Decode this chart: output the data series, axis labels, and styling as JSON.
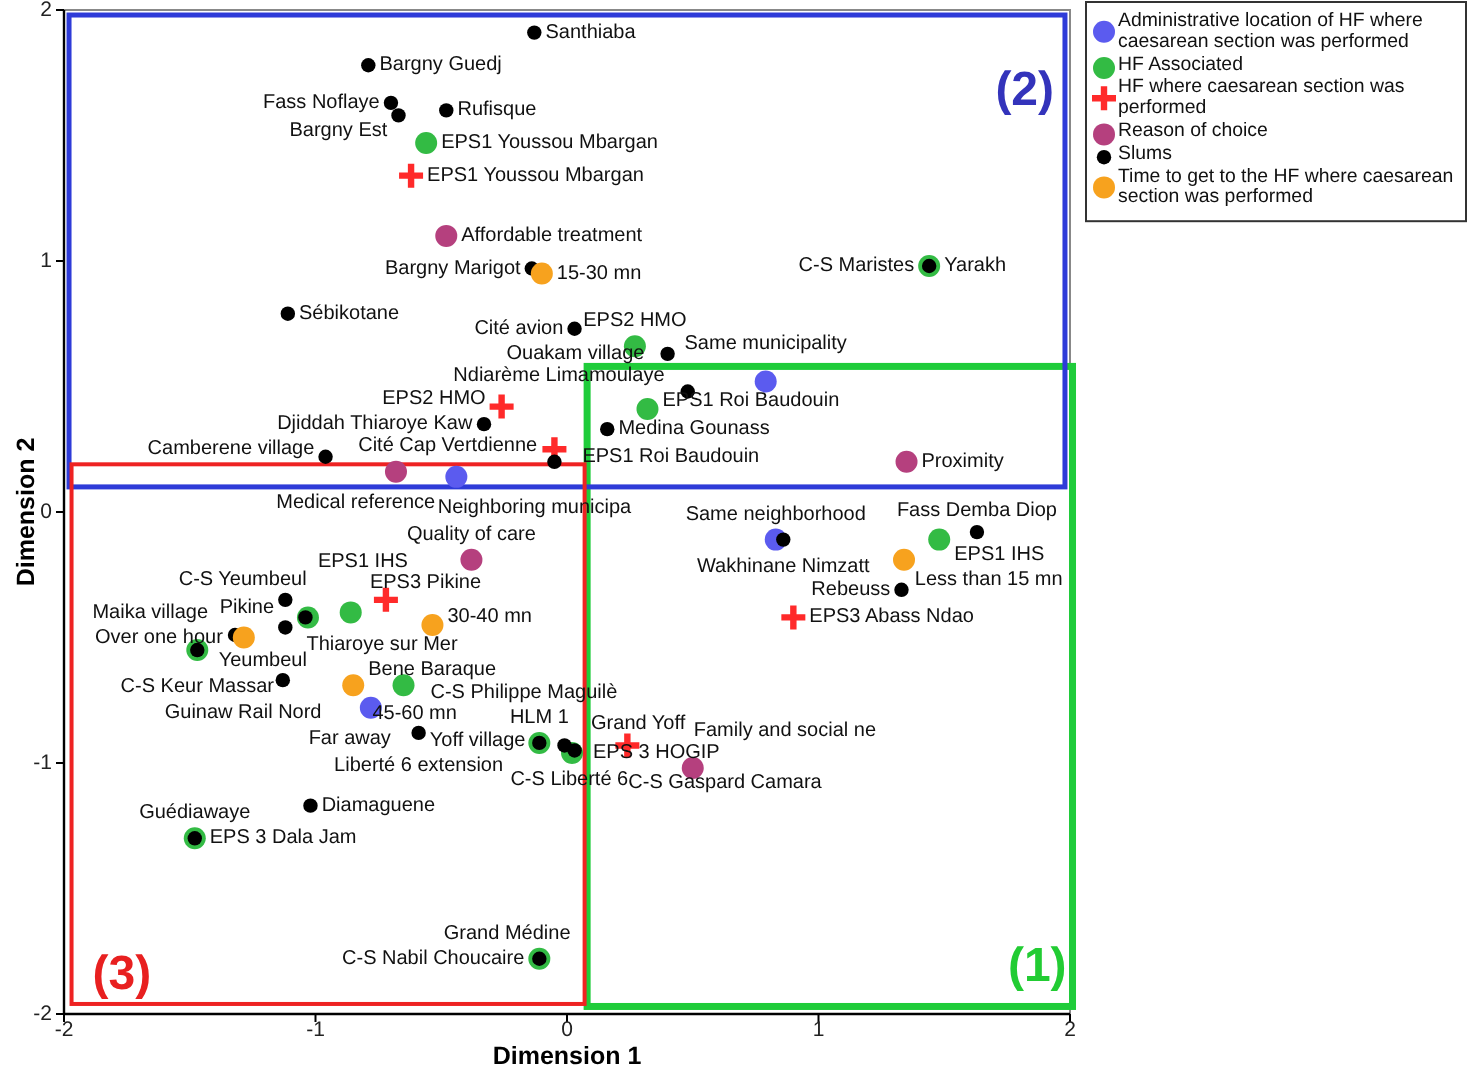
{
  "chart_data": {
    "type": "scatter",
    "xlabel": "Dimension 1",
    "ylabel": "Dimension 2",
    "xlim": [
      -2,
      2
    ],
    "ylim": [
      -2,
      2
    ],
    "xticks": [
      -2,
      -1,
      0,
      1,
      2
    ],
    "yticks": [
      -2,
      -1,
      0,
      1,
      2
    ],
    "legend": "top right",
    "series": [
      {
        "name": "Administrative location of HF where caesarean section was performed",
        "color": "#5b5bef",
        "marker": "circle",
        "x": [
          -0.44,
          0.79,
          0.83,
          -0.78
        ],
        "values": [
          0.14,
          0.52,
          -0.11,
          -0.78
        ]
      },
      {
        "name": "HF Associated",
        "color": "#33bb44",
        "marker": "circle",
        "x": [
          -0.56,
          0.27,
          1.44,
          0.32,
          1.48,
          -0.86,
          -1.03,
          -1.47,
          -0.65,
          -0.11,
          0.02,
          -1.48,
          -0.11
        ],
        "values": [
          1.47,
          0.66,
          0.98,
          0.41,
          -0.11,
          -0.4,
          -0.42,
          -0.55,
          -0.69,
          -0.92,
          -0.96,
          -1.3,
          -1.78
        ]
      },
      {
        "name": "HF where caesarean section was performed",
        "color": "#ff2a2a",
        "marker": "cross",
        "x": [
          -0.62,
          -0.26,
          -0.05,
          -0.72,
          0.9,
          0.24
        ],
        "values": [
          1.34,
          0.42,
          0.25,
          -0.35,
          -0.42,
          -0.93
        ]
      },
      {
        "name": "Reason of choice",
        "color": "#b5407e",
        "marker": "circle",
        "x": [
          -0.48,
          -0.68,
          1.35,
          -0.38,
          0.5
        ],
        "values": [
          1.1,
          0.16,
          0.2,
          -0.19,
          -1.02
        ]
      },
      {
        "name": "Slums",
        "color": "#000000",
        "marker": "circle",
        "x": [
          -0.79,
          -0.13,
          -0.7,
          -0.67,
          -0.48,
          -0.14,
          -1.11,
          0.03,
          0.4,
          1.44,
          0.48,
          0.16,
          -0.33,
          -0.05,
          -0.96,
          0.86,
          1.63,
          1.33,
          -1.12,
          -1.04,
          -1.12,
          -1.32,
          -1.47,
          -1.13,
          -0.59,
          -0.11,
          -0.01,
          0.03,
          -1.02,
          -1.48,
          -0.11
        ],
        "values": [
          1.78,
          1.91,
          1.63,
          1.58,
          1.6,
          0.97,
          0.79,
          0.73,
          0.63,
          0.98,
          0.48,
          0.33,
          0.35,
          0.2,
          0.22,
          -0.11,
          -0.08,
          -0.31,
          -0.35,
          -0.42,
          -0.46,
          -0.49,
          -0.55,
          -0.67,
          -0.88,
          -0.92,
          -0.93,
          -0.95,
          -1.17,
          -1.3,
          -1.78
        ]
      },
      {
        "name": "Time to get to the HF where caesarean section was performed",
        "color": "#f7a21e",
        "marker": "circle",
        "x": [
          -0.1,
          1.34,
          -0.535,
          -1.285,
          -0.85
        ],
        "values": [
          0.95,
          -0.19,
          -0.45,
          -0.5,
          -0.69
        ]
      }
    ],
    "annotations": [
      "(1)",
      "(2)",
      "(3)",
      {
        "text": "Pikine",
        "x": -1.12,
        "y": -0.35
      },
      {
        "text": "Thiaroye sur Mer",
        "x": -1.04,
        "y": -0.42
      },
      {
        "text": "C-S Yeumbeul",
        "x": -1.03,
        "y": -0.42
      },
      {
        "text": "Yeumbeul",
        "x": -1.12,
        "y": -0.46
      },
      {
        "text": "EPS3 Pikine",
        "x": -0.86,
        "y": -0.4
      },
      {
        "text": "EPS1 IHS",
        "x": -0.72,
        "y": -0.35
      },
      {
        "text": "30-40 mn",
        "x": -0.535,
        "y": -0.45
      },
      {
        "text": "Over one hour",
        "x": -1.285,
        "y": -0.5
      },
      {
        "text": "Maika village",
        "x": -1.47,
        "y": -0.55
      },
      {
        "text": "C-S Keur Massar",
        "x": -1.47,
        "y": -0.55
      },
      {
        "text": "Guinaw Rail Nord",
        "x": -1.13,
        "y": -0.67
      },
      {
        "text": "45-60 mn",
        "x": -0.85,
        "y": -0.69
      },
      {
        "text": "Bene Baraque",
        "x": -0.85,
        "y": -0.69
      },
      {
        "text": "C-S Philippe Maguilè",
        "x": -0.65,
        "y": -0.69
      },
      {
        "text": "Far away",
        "x": -0.78,
        "y": -0.78
      },
      {
        "text": "Yoff village",
        "x": -0.59,
        "y": -0.88
      },
      {
        "text": "Liberté 6 extension",
        "x": -0.59,
        "y": -0.88
      },
      {
        "text": "HLM 1",
        "x": -0.11,
        "y": -0.92
      },
      {
        "text": "C-S Liberté 6",
        "x": -0.11,
        "y": -0.92
      },
      {
        "text": "Grand Yoff",
        "x": 0.03,
        "y": -0.95
      },
      {
        "text": "EPS 3 HOGIP",
        "x": 0.02,
        "y": -0.96
      },
      {
        "text": "C-S Gaspard Camara",
        "x": 0.24,
        "y": -0.93
      },
      {
        "text": "Family and social ne",
        "x": 0.5,
        "y": -1.02
      },
      {
        "text": "Diamaguene",
        "x": -1.02,
        "y": -1.17
      },
      {
        "text": "EPS 3 Dala Jam",
        "x": -1.48,
        "y": -1.3
      },
      {
        "text": "Guédiawaye",
        "x": -1.48,
        "y": -1.3
      },
      {
        "text": "C-S Nabil Choucaire",
        "x": -0.11,
        "y": -1.78
      },
      {
        "text": "Grand Médine",
        "x": -0.11,
        "y": -1.78
      },
      {
        "text": "Djiddah Thiaroye Kaw",
        "x": -0.33,
        "y": 0.35
      },
      {
        "text": "EPS2 HMO",
        "x": -0.26,
        "y": 0.42
      },
      {
        "text": "Cité Cap Vertdienne",
        "x": -0.05,
        "y": 0.2
      },
      {
        "text": "EPS1 Roi Baudouin",
        "x": -0.05,
        "y": 0.25
      },
      {
        "text": "Medina Gounass",
        "x": 0.16,
        "y": 0.33
      },
      {
        "text": "Camberene village",
        "x": -0.96,
        "y": 0.22
      },
      {
        "text": "Medical reference",
        "x": -0.68,
        "y": 0.16
      },
      {
        "text": "Neighboring municipa",
        "x": -0.44,
        "y": 0.14
      },
      {
        "text": "Quality of care",
        "x": -0.38,
        "y": -0.19
      },
      {
        "text": "Ndiarème Limamoulaye",
        "x": 0.48,
        "y": 0.48
      },
      {
        "text": "EPS1 Roi Baudouin",
        "x": 0.32,
        "y": 0.41
      },
      {
        "text": "Same municipality",
        "x": 0.79,
        "y": 0.52
      },
      {
        "text": "Proximity",
        "x": 1.35,
        "y": 0.2
      },
      {
        "text": "Same neighborhood",
        "x": 0.83,
        "y": -0.11
      },
      {
        "text": "Wakhinane Nimzatt",
        "x": 0.86,
        "y": -0.11
      },
      {
        "text": "EPS1 IHS",
        "x": 1.48,
        "y": -0.11
      },
      {
        "text": "Fass Demba Diop",
        "x": 1.63,
        "y": -0.08
      },
      {
        "text": "Less than 15 mn",
        "x": 1.34,
        "y": -0.19
      },
      {
        "text": "Rebeuss",
        "x": 1.33,
        "y": -0.31
      },
      {
        "text": "EPS3 Abass Ndao",
        "x": 0.9,
        "y": -0.42
      },
      {
        "text": "Bargny Guedj",
        "x": -0.79,
        "y": 1.78
      },
      {
        "text": "Santhiaba",
        "x": -0.13,
        "y": 1.91
      },
      {
        "text": "Fass Noflaye",
        "x": -0.7,
        "y": 1.63
      },
      {
        "text": "Bargny Est",
        "x": -0.67,
        "y": 1.58
      },
      {
        "text": "Rufisque",
        "x": -0.48,
        "y": 1.6
      },
      {
        "text": "EPS1 Youssou Mbargan",
        "x": -0.56,
        "y": 1.47
      },
      {
        "text": "EPS1 Youssou Mbargan",
        "x": -0.62,
        "y": 1.34
      },
      {
        "text": "Affordable treatment",
        "x": -0.48,
        "y": 1.1
      },
      {
        "text": "Bargny Marigot",
        "x": -0.14,
        "y": 0.97
      },
      {
        "text": "15-30 mn",
        "x": -0.1,
        "y": 0.95
      },
      {
        "text": "Sébikotane",
        "x": -1.11,
        "y": 0.79
      },
      {
        "text": "Cité avion",
        "x": 0.03,
        "y": 0.73
      },
      {
        "text": "EPS2 HMO",
        "x": 0.27,
        "y": 0.66
      },
      {
        "text": "Ouakam village",
        "x": 0.4,
        "y": 0.63
      },
      {
        "text": "Yarakh",
        "x": 1.44,
        "y": 0.98
      },
      {
        "text": "C-S Maristes",
        "x": 1.44,
        "y": 0.98
      }
    ]
  }
}
